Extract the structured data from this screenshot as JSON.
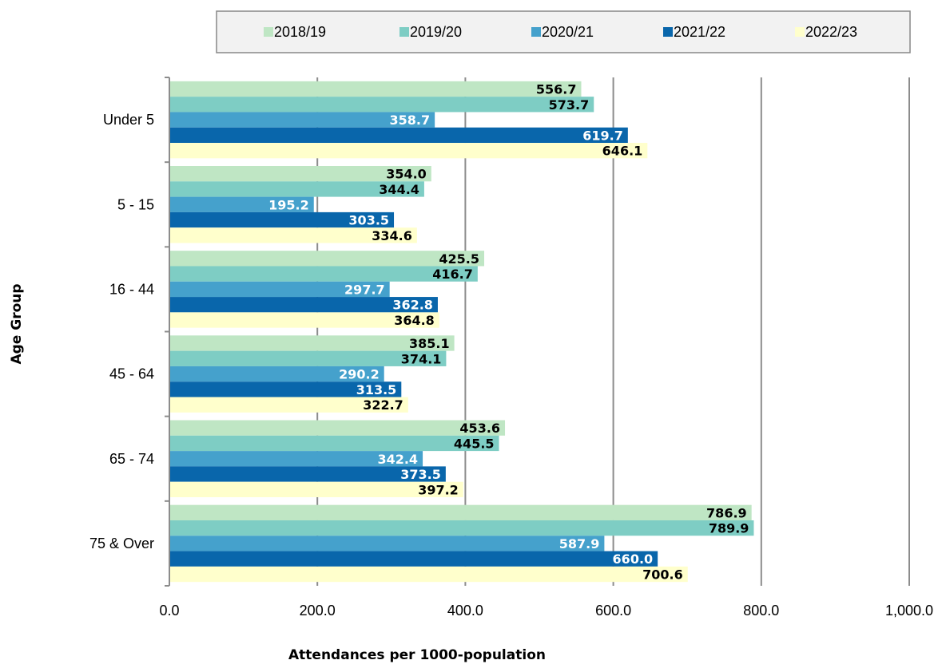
{
  "chart_data": {
    "type": "bar",
    "orientation": "horizontal",
    "categories": [
      "Under 5",
      "5 - 15",
      "16 - 44",
      "45 - 64",
      "65 - 74",
      "75 & Over"
    ],
    "series": [
      {
        "name": "2018/19",
        "color": "#bfe6c4",
        "label_color": "#000000",
        "values": [
          556.7,
          354.0,
          425.5,
          385.1,
          453.6,
          786.9
        ]
      },
      {
        "name": "2019/20",
        "color": "#7ecdc4",
        "label_color": "#000000",
        "values": [
          573.7,
          344.4,
          416.7,
          374.1,
          445.5,
          789.9
        ]
      },
      {
        "name": "2020/21",
        "color": "#45a1cc",
        "label_color": "#ffffff",
        "values": [
          358.7,
          195.2,
          297.7,
          290.2,
          342.4,
          587.9
        ]
      },
      {
        "name": "2021/22",
        "color": "#0966ab",
        "label_color": "#ffffff",
        "values": [
          619.7,
          303.5,
          362.8,
          313.5,
          373.5,
          660.0
        ]
      },
      {
        "name": "2022/23",
        "color": "#ffffcc",
        "label_color": "#000000",
        "values": [
          646.1,
          334.6,
          364.8,
          322.7,
          397.2,
          700.6
        ]
      }
    ],
    "xlabel": "Attendances per 1000-population",
    "ylabel": "Age Group",
    "xlim": [
      0,
      1000
    ],
    "xticks": [
      "0.0",
      "200.0",
      "400.0",
      "600.0",
      "800.0",
      "1,000.0"
    ],
    "grid": true,
    "legend_position": "top"
  }
}
